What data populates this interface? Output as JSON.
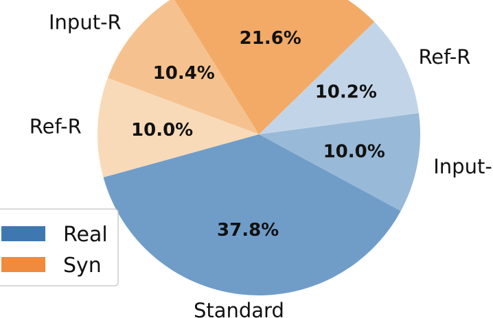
{
  "chart_data": {
    "type": "pie",
    "slices": [
      {
        "label": "Standard",
        "value": 37.8,
        "value_label": "37.8%",
        "color": "#6f9dc8"
      },
      {
        "label": "Input-R",
        "value": 10.0,
        "value_label": "10.0%",
        "color": "#98b9d7"
      },
      {
        "label": "Ref-R",
        "value": 10.2,
        "value_label": "10.2%",
        "color": "#c2d5e8"
      },
      {
        "label": "Standard",
        "value": 21.6,
        "value_label": "21.6%",
        "color": "#f2aa66",
        "hide_label": true
      },
      {
        "label": "Input-R",
        "value": 10.4,
        "value_label": "10.4%",
        "color": "#f5c28f"
      },
      {
        "label": "Ref-R",
        "value": 10.0,
        "value_label": "10.0%",
        "color": "#f8dab9"
      }
    ],
    "legend": {
      "placement": "bottom-left",
      "entries": [
        {
          "name": "Real",
          "color": "#3f78b1"
        },
        {
          "name": "Syn",
          "color": "#f08a3c"
        }
      ]
    }
  }
}
